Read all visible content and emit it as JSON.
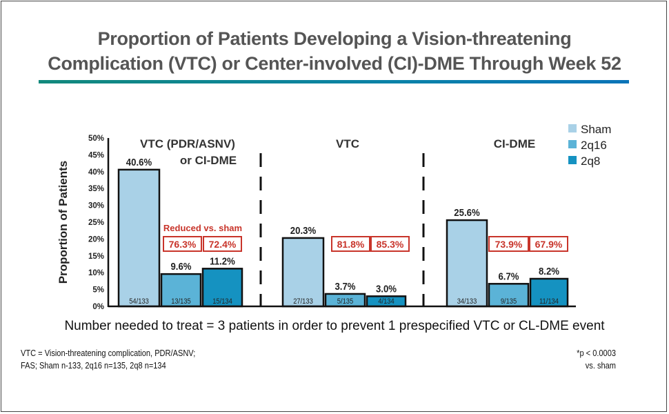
{
  "title_line1": "Proportion of Patients Developing a Vision-threatening",
  "title_line2": "Complication (VTC) or Center-involved (CI)-DME Through Week 52",
  "chart_data": {
    "type": "bar",
    "ylabel": "Proportion of Patients",
    "ylim": [
      0,
      50
    ],
    "yticks": [
      "0%",
      "5%",
      "10%",
      "15%",
      "20%",
      "25%",
      "30%",
      "35%",
      "40%",
      "45%",
      "50%"
    ],
    "grid": false,
    "legend_placement": "top-right",
    "categories": [
      "VTC (PDR/ASNV) or CI-DME",
      "VTC",
      "CI-DME"
    ],
    "category_lines": [
      [
        "VTC (PDR/ASNV)",
        "or CI-DME"
      ],
      [
        "VTC"
      ],
      [
        "CI-DME"
      ]
    ],
    "series": [
      {
        "name": "Sham",
        "color": "#a9d1e7",
        "values": [
          40.6,
          20.3,
          25.6
        ],
        "labels": [
          "40.6%",
          "20.3%",
          "25.6%"
        ],
        "counts": [
          "54/133",
          "27/133",
          "34/133"
        ]
      },
      {
        "name": "2q16",
        "color": "#5bb3d7",
        "values": [
          9.6,
          3.7,
          6.7
        ],
        "labels": [
          "9.6%",
          "3.7%",
          "6.7%"
        ],
        "counts": [
          "13/135",
          "5/135",
          "9/135"
        ]
      },
      {
        "name": "2q8",
        "color": "#1592c1",
        "values": [
          11.2,
          3.0,
          8.2
        ],
        "labels": [
          "11.2%",
          "3.0%",
          "8.2%"
        ],
        "counts": [
          "15/134",
          "4/134",
          "11/134"
        ]
      }
    ],
    "reduction_label": "Reduced vs. sham",
    "reductions": [
      [
        "76.3%",
        "72.4%"
      ],
      [
        "81.8%",
        "85.3%"
      ],
      [
        "73.9%",
        "67.9%"
      ]
    ],
    "reduction_color": "#c8342a"
  },
  "nnt": "Number needed to treat = 3 patients in order to prevent 1 prespecified VTC or CL-DME event",
  "footnote_left": [
    "VTC = Vision-threatening complication, PDR/ASNV;",
    "FAS; Sham n-133, 2q16 n=135, 2q8 n=134"
  ],
  "footnote_right": [
    "*p < 0.0003",
    "vs. sham"
  ]
}
